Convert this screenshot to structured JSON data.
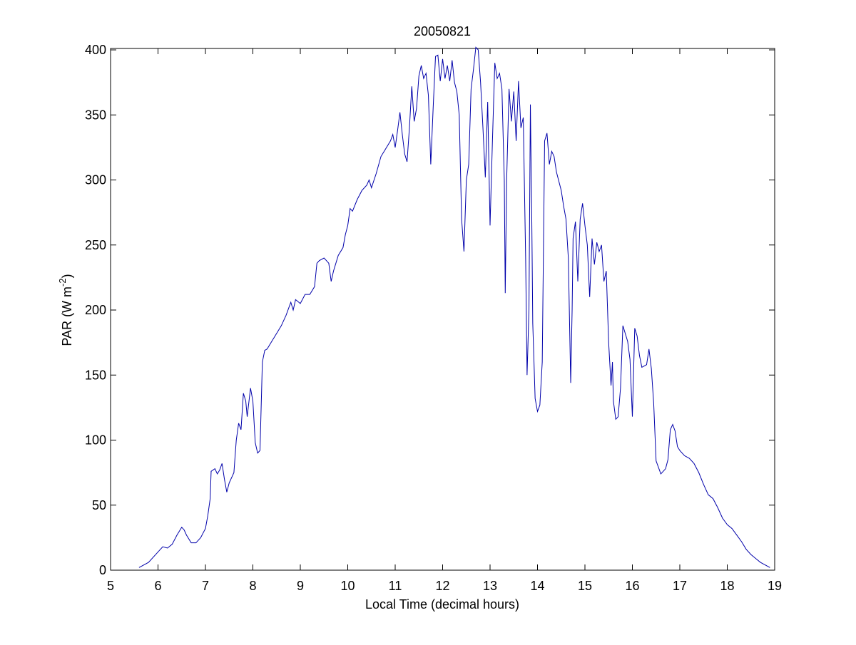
{
  "chart_data": {
    "type": "line",
    "title": "20050821",
    "xlabel": "Local Time (decimal hours)",
    "ylabel_parts": [
      "PAR (W m",
      "-2",
      ")"
    ],
    "xlim": [
      5,
      19
    ],
    "ylim": [
      0,
      400
    ],
    "xticks": [
      5,
      6,
      7,
      8,
      9,
      10,
      11,
      12,
      13,
      14,
      15,
      16,
      17,
      18,
      19
    ],
    "yticks": [
      0,
      50,
      100,
      150,
      200,
      250,
      300,
      350,
      400
    ],
    "grid": false,
    "series": [
      {
        "color": "#0000aa",
        "x": [
          5.6,
          5.8,
          6.0,
          6.1,
          6.2,
          6.3,
          6.4,
          6.5,
          6.55,
          6.6,
          6.7,
          6.8,
          6.9,
          7.0,
          7.05,
          7.1,
          7.12,
          7.2,
          7.25,
          7.3,
          7.35,
          7.4,
          7.45,
          7.5,
          7.6,
          7.65,
          7.7,
          7.75,
          7.8,
          7.85,
          7.88,
          7.95,
          8.0,
          8.05,
          8.1,
          8.15,
          8.2,
          8.25,
          8.3,
          8.4,
          8.5,
          8.6,
          8.7,
          8.8,
          8.85,
          8.9,
          9.0,
          9.1,
          9.2,
          9.3,
          9.35,
          9.4,
          9.5,
          9.6,
          9.65,
          9.7,
          9.8,
          9.9,
          9.95,
          10.0,
          10.05,
          10.1,
          10.2,
          10.3,
          10.4,
          10.45,
          10.5,
          10.6,
          10.7,
          10.8,
          10.9,
          10.95,
          11.0,
          11.05,
          11.1,
          11.15,
          11.2,
          11.25,
          11.3,
          11.35,
          11.4,
          11.45,
          11.5,
          11.55,
          11.6,
          11.65,
          11.7,
          11.75,
          11.8,
          11.85,
          11.9,
          11.95,
          12.0,
          12.05,
          12.1,
          12.15,
          12.2,
          12.25,
          12.3,
          12.35,
          12.4,
          12.45,
          12.5,
          12.55,
          12.6,
          12.65,
          12.7,
          12.75,
          12.8,
          12.85,
          12.9,
          12.95,
          13.0,
          13.05,
          13.1,
          13.15,
          13.2,
          13.25,
          13.3,
          13.32,
          13.35,
          13.4,
          13.45,
          13.5,
          13.55,
          13.6,
          13.65,
          13.7,
          13.75,
          13.78,
          13.82,
          13.85,
          13.88,
          13.9,
          13.95,
          14.0,
          14.05,
          14.1,
          14.15,
          14.2,
          14.25,
          14.3,
          14.35,
          14.4,
          14.5,
          14.55,
          14.6,
          14.65,
          14.7,
          14.73,
          14.75,
          14.8,
          14.85,
          14.9,
          14.95,
          15.0,
          15.05,
          15.1,
          15.15,
          15.2,
          15.25,
          15.3,
          15.35,
          15.4,
          15.45,
          15.5,
          15.55,
          15.58,
          15.6,
          15.65,
          15.7,
          15.75,
          15.8,
          15.85,
          15.9,
          15.95,
          16.0,
          16.05,
          16.1,
          16.15,
          16.2,
          16.3,
          16.35,
          16.4,
          16.45,
          16.5,
          16.6,
          16.7,
          16.75,
          16.8,
          16.85,
          16.9,
          16.95,
          17.0,
          17.1,
          17.2,
          17.3,
          17.4,
          17.5,
          17.6,
          17.7,
          17.8,
          17.9,
          18.0,
          18.1,
          18.2,
          18.3,
          18.4,
          18.5,
          18.6,
          18.7,
          18.8,
          18.9
        ],
        "values": [
          2,
          6,
          14,
          18,
          17,
          20,
          27,
          33,
          31,
          27,
          21,
          21,
          25,
          32,
          42,
          55,
          76,
          78,
          74,
          77,
          82,
          70,
          60,
          67,
          75,
          100,
          113,
          108,
          136,
          130,
          118,
          140,
          130,
          98,
          90,
          92,
          160,
          169,
          170,
          176,
          182,
          188,
          196,
          206,
          200,
          208,
          205,
          212,
          212,
          218,
          236,
          238,
          240,
          236,
          222,
          230,
          242,
          248,
          258,
          265,
          278,
          276,
          285,
          292,
          296,
          300,
          294,
          305,
          318,
          324,
          330,
          335,
          325,
          338,
          352,
          335,
          320,
          314,
          340,
          372,
          345,
          355,
          380,
          388,
          378,
          382,
          365,
          312,
          355,
          395,
          396,
          376,
          393,
          378,
          388,
          376,
          392,
          375,
          368,
          350,
          270,
          245,
          300,
          312,
          370,
          385,
          402,
          400,
          375,
          340,
          302,
          360,
          265,
          330,
          390,
          378,
          382,
          370,
          300,
          213,
          300,
          370,
          345,
          368,
          330,
          376,
          340,
          348,
          240,
          150,
          200,
          358,
          268,
          190,
          132,
          122,
          127,
          160,
          330,
          336,
          312,
          322,
          318,
          306,
          292,
          280,
          270,
          240,
          144,
          200,
          255,
          268,
          222,
          270,
          282,
          265,
          250,
          210,
          255,
          235,
          252,
          245,
          250,
          222,
          230,
          175,
          142,
          160,
          130,
          116,
          118,
          140,
          188,
          182,
          176,
          162,
          118,
          186,
          180,
          165,
          156,
          158,
          170,
          155,
          128,
          84,
          74,
          78,
          85,
          108,
          112,
          107,
          95,
          92,
          88,
          86,
          82,
          75,
          66,
          58,
          55,
          48,
          40,
          35,
          32,
          27,
          22,
          16,
          12,
          9,
          6,
          4,
          2
        ]
      }
    ]
  }
}
